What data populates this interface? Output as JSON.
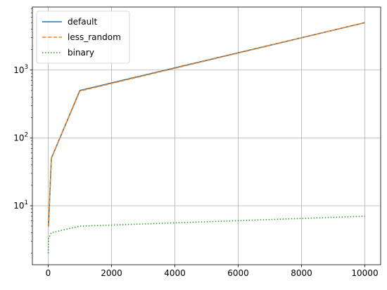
{
  "chart_data": {
    "type": "line",
    "title": "",
    "xlabel": "",
    "ylabel": "",
    "x_scale": "linear",
    "y_scale": "log",
    "xlim": [
      -500,
      10500
    ],
    "ylim": [
      1.35,
      8500
    ],
    "grid": true,
    "legend_position": "top-left",
    "x_ticks": [
      {
        "value": 0,
        "label": "0"
      },
      {
        "value": 2000,
        "label": "2000"
      },
      {
        "value": 4000,
        "label": "4000"
      },
      {
        "value": 6000,
        "label": "6000"
      },
      {
        "value": 8000,
        "label": "8000"
      },
      {
        "value": 10000,
        "label": "10000"
      }
    ],
    "y_ticks": [
      {
        "value": 10,
        "base": "10",
        "exp": "1"
      },
      {
        "value": 100,
        "base": "10",
        "exp": "2"
      },
      {
        "value": 1000,
        "base": "10",
        "exp": "3"
      }
    ],
    "series": [
      {
        "name": "default",
        "color": "#1f77b4",
        "linestyle": "solid",
        "x": [
          1,
          10,
          100,
          1000,
          10000
        ],
        "y": [
          5,
          5,
          50,
          500,
          5000
        ]
      },
      {
        "name": "less_random",
        "color": "#ff7f0e",
        "linestyle": "dashed",
        "x": [
          1,
          10,
          100,
          1000,
          10000
        ],
        "y": [
          5,
          5,
          50,
          490,
          5000
        ]
      },
      {
        "name": "binary",
        "color": "#2ca02c",
        "linestyle": "dotted",
        "x": [
          1,
          10,
          100,
          1000,
          10000
        ],
        "y": [
          2,
          3.3,
          4,
          5,
          7
        ]
      }
    ]
  }
}
